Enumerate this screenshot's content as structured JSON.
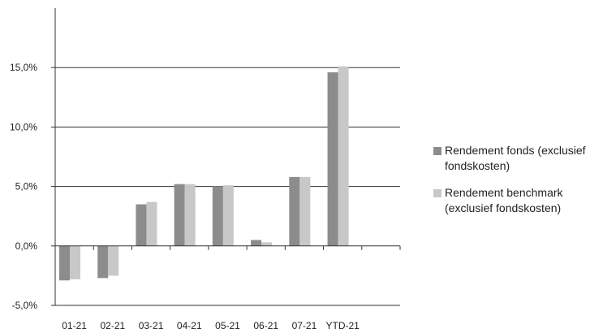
{
  "chart_data": {
    "type": "bar",
    "title": "",
    "xlabel": "",
    "ylabel": "",
    "categories": [
      "01-21",
      "02-21",
      "03-21",
      "04-21",
      "05-21",
      "06-21",
      "07-21",
      "YTD-21"
    ],
    "series": [
      {
        "name": "Rendement fonds (exclusief fondskosten)",
        "color": "#8c8c8c",
        "values": [
          -2.9,
          -2.7,
          3.5,
          5.2,
          5.0,
          0.5,
          5.8,
          14.6
        ]
      },
      {
        "name": "Rendement benchmark (exclusief fondskosten)",
        "color": "#c8c8c8",
        "values": [
          -2.8,
          -2.5,
          3.7,
          5.2,
          5.1,
          0.3,
          5.8,
          15.1
        ]
      }
    ],
    "ylim": [
      -5,
      20
    ],
    "yticks": [
      -5,
      0,
      5,
      10,
      15
    ],
    "ytick_labels": [
      "-5,0%",
      "0,0%",
      "5,0%",
      "10,0%",
      "15,0%"
    ],
    "grid": true,
    "legend_position": "right"
  }
}
